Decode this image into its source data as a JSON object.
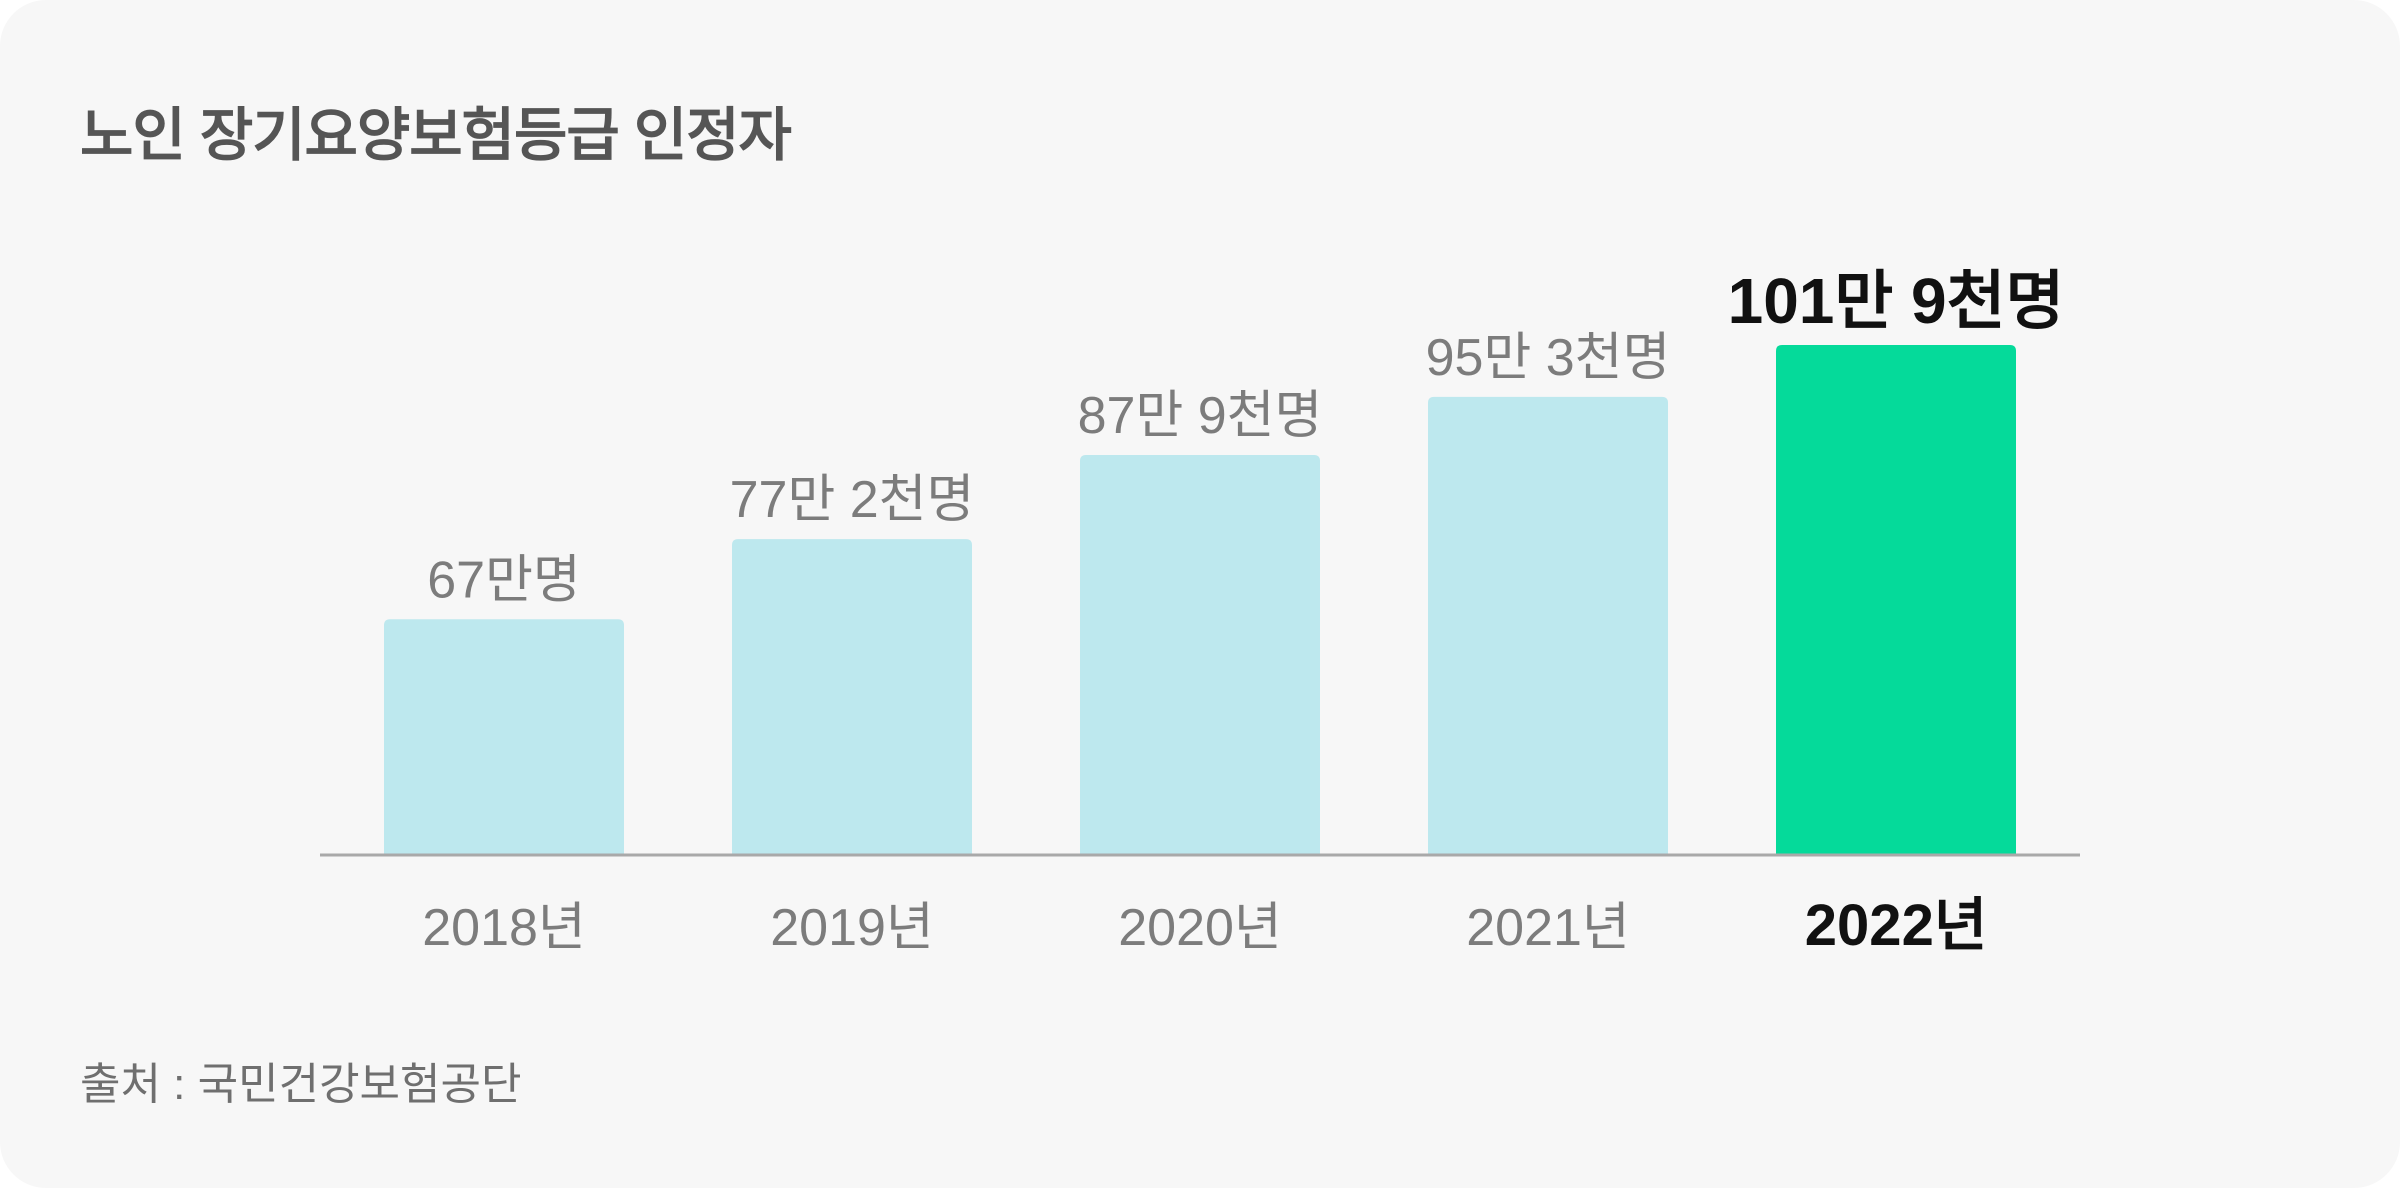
{
  "title": "노인 장기요양보험등급 인정자",
  "source": "출처 : 국민건강보험공단",
  "colors": {
    "bar": "#bde8ee",
    "highlight_bar": "#05da9a",
    "label": "#7c7c7c",
    "highlight_label": "#111111",
    "axis": "#a9a9a9"
  },
  "chart_data": {
    "type": "bar",
    "title": "노인 장기요양보험등급 인정자",
    "categories": [
      "2018년",
      "2019년",
      "2020년",
      "2021년",
      "2022년"
    ],
    "values": [
      670000,
      772000,
      879000,
      953000,
      1019000
    ],
    "data_labels": [
      "67만명",
      "77만 2천명",
      "87만 9천명",
      "95만 3천명",
      "101만 9천명"
    ],
    "highlight_index": 4,
    "ylim": [
      370000,
      1019000
    ],
    "grid": false,
    "legend": "none"
  }
}
